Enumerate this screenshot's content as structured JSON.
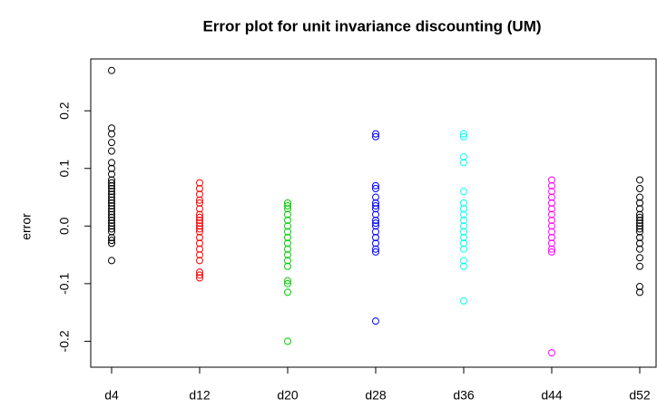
{
  "chart_data": {
    "type": "stripchart",
    "title": "Error plot for unit invariance discounting (UM)",
    "y_label": "error",
    "categories": [
      "d4",
      "d12",
      "d20",
      "d28",
      "d36",
      "d44",
      "d52"
    ],
    "colors": [
      "#000000",
      "#ff0000",
      "#00cd00",
      "#0000ff",
      "#00ffff",
      "#ff00ff",
      "#000000"
    ],
    "values": [
      [
        0.27,
        0.17,
        0.16,
        0.145,
        0.13,
        0.11,
        0.1,
        0.09,
        0.08,
        0.075,
        0.07,
        0.065,
        0.06,
        0.055,
        0.05,
        0.045,
        0.04,
        0.035,
        0.03,
        0.025,
        0.02,
        0.015,
        0.01,
        0.005,
        0.0,
        -0.005,
        -0.01,
        -0.02,
        -0.025,
        -0.03,
        -0.06
      ],
      [
        0.075,
        0.065,
        0.055,
        0.045,
        0.04,
        0.03,
        0.02,
        0.015,
        0.01,
        0.005,
        0.0,
        -0.005,
        -0.01,
        -0.02,
        -0.03,
        -0.04,
        -0.05,
        -0.06,
        -0.08,
        -0.085,
        -0.09
      ],
      [
        0.04,
        0.035,
        0.03,
        0.02,
        0.01,
        0.0,
        -0.01,
        -0.02,
        -0.03,
        -0.04,
        -0.05,
        -0.06,
        -0.07,
        -0.095,
        -0.1,
        -0.115,
        -0.2
      ],
      [
        0.16,
        0.155,
        0.07,
        0.065,
        0.05,
        0.04,
        0.035,
        0.03,
        0.02,
        0.01,
        0.005,
        0.0,
        -0.01,
        -0.02,
        -0.03,
        -0.04,
        -0.045,
        -0.165
      ],
      [
        0.16,
        0.155,
        0.12,
        0.11,
        0.06,
        0.04,
        0.03,
        0.02,
        0.01,
        0.0,
        -0.01,
        -0.02,
        -0.03,
        -0.04,
        -0.06,
        -0.07,
        -0.13
      ],
      [
        0.08,
        0.07,
        0.06,
        0.05,
        0.04,
        0.03,
        0.02,
        0.01,
        0.0,
        -0.01,
        -0.02,
        -0.03,
        -0.04,
        -0.045,
        -0.22
      ],
      [
        0.08,
        0.065,
        0.05,
        0.04,
        0.03,
        0.02,
        0.015,
        0.01,
        0.005,
        0.0,
        -0.005,
        -0.01,
        -0.02,
        -0.03,
        -0.04,
        -0.055,
        -0.07,
        -0.105,
        -0.115
      ]
    ],
    "ylim": [
      -0.245,
      0.29
    ],
    "yticks": [
      -0.2,
      -0.1,
      {
        "value": 0,
        "label": "0.0"
      },
      0.1,
      0.2
    ]
  }
}
